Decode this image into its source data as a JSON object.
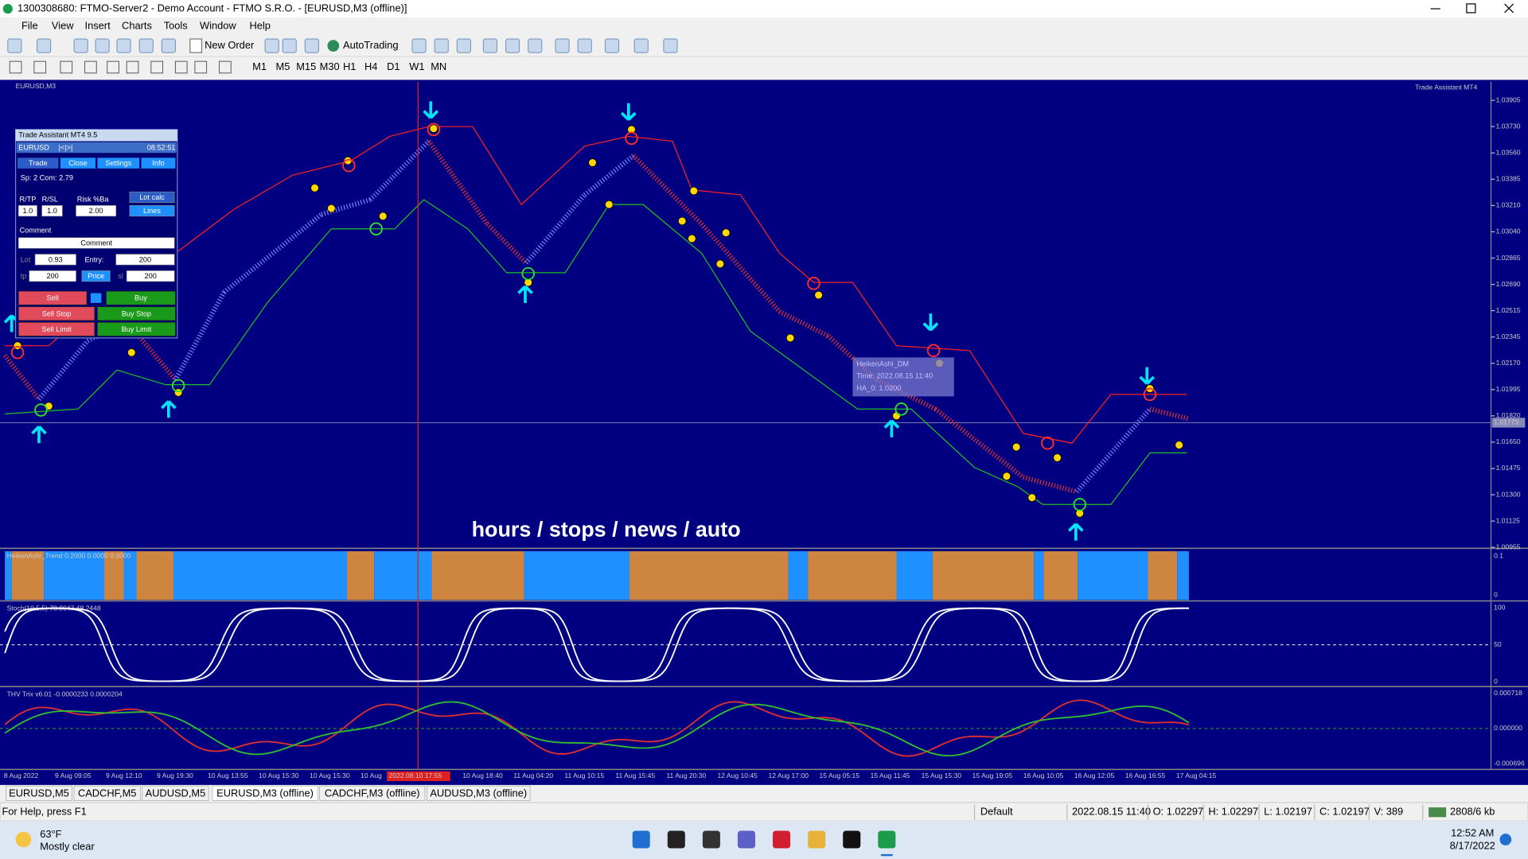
{
  "title_bar": {
    "title": "1300308680: FTMO-Server2 - Demo Account - FTMO S.R.O. - [EURUSD,M3 (offline)]"
  },
  "menu": [
    "File",
    "View",
    "Insert",
    "Charts",
    "Tools",
    "Window",
    "Help"
  ],
  "toolbar": {
    "new_order": "New Order",
    "auto_trading": "AutoTrading",
    "timeframes": [
      "M1",
      "M5",
      "M15",
      "M30",
      "H1",
      "H4",
      "D1",
      "W1",
      "MN"
    ]
  },
  "chart": {
    "symbol": "EURUSD,M3",
    "ea_label": "Trade Assistant MT4",
    "price_ticks": [
      "1.03905",
      "1.03730",
      "1.03560",
      "1.03385",
      "1.03210",
      "1.03040",
      "1.02865",
      "1.02690",
      "1.02515",
      "1.02345",
      "1.02170",
      "1.01995",
      "1.01820",
      "1.01650",
      "1.01475",
      "1.01300",
      "1.01125",
      "1.00955"
    ],
    "current_price": "1.01773",
    "time_labels": [
      "8 Aug 2022",
      "9 Aug 09:05",
      "9 Aug 12:10",
      "9 Aug 19:30",
      "10 Aug 13:55",
      "10 Aug 15:30",
      "10 Aug 15:30",
      "10 Aug",
      "10 Aug 18:40",
      "11 Aug 04:20",
      "11 Aug 10:15",
      "11 Aug 15:45",
      "11 Aug 20:30",
      "12 Aug 10:45",
      "12 Aug 17:00",
      "15 Aug 05:15",
      "15 Aug 11:45",
      "15 Aug 15:30",
      "15 Aug 19:05",
      "16 Aug 10:05",
      "16 Aug 12:05",
      "16 Aug 16:55",
      "17 Aug 04:15"
    ],
    "time_cursor": "2022.08.10 17:55",
    "overlay_text": "hours / stops / news / auto",
    "tooltip": [
      "HeikenAshi_DM",
      "Time: 2022.08.15 11:40",
      "HA_0: 1.0200"
    ],
    "indicators": [
      {
        "label": "HeikenAshi_Trend 0.2000 0.0000 0.0000",
        "ticks": [
          "0.1",
          "0"
        ]
      },
      {
        "label": "Stoch(10,5,5) 78.0047 48.2448",
        "ticks": [
          "100",
          "50",
          "0"
        ]
      },
      {
        "label": "THV Trix v6.01 -0.0000233 0.0000204",
        "ticks": [
          "0.000718",
          "0.000000",
          "-0.000696"
        ]
      }
    ]
  },
  "trade_panel": {
    "title": "Trade Assistant MT4 9.5",
    "symbol": "EURUSD",
    "nav": "|<|>|",
    "time": "08:52:51",
    "tabs": [
      "Trade",
      "Close",
      "Settings",
      "Info"
    ],
    "spread": "Sp: 2  Com: 2.79",
    "rtp_label": "R/TP",
    "rsl_label": "R/SL",
    "risk_label": "Risk %Ba",
    "rtp": "1.0",
    "rsl": "1.0",
    "risk": "2.00",
    "lot_calc": "Lot calc",
    "lines": "Lines",
    "comment_label": "Comment",
    "comment": "Comment",
    "lot_label": "Lot",
    "lot": "0.93",
    "entry_label": "Entry:",
    "entry": "200",
    "tp_label": "tp",
    "tp": "200",
    "price": "Price",
    "sl_label": "sl",
    "sl": "200",
    "sell": "Sell",
    "buy": "Buy",
    "sell_stop": "Sell Stop",
    "buy_stop": "Buy Stop",
    "sell_limit": "Sell Limit",
    "buy_limit": "Buy Limit"
  },
  "tabs": [
    "EURUSD,M5",
    "CADCHF,M5",
    "AUDUSD,M5",
    "EURUSD,M3 (offline)",
    "CADCHF,M3 (offline)",
    "AUDUSD,M3 (offline)"
  ],
  "status_bar": {
    "help": "For Help, press F1",
    "profile": "Default",
    "time": "2022.08.15 11:40",
    "open": "O: 1.02297",
    "high": "H: 1.02297",
    "low": "L: 1.02197",
    "close": "C: 1.02197",
    "volume": "V: 389",
    "traffic": "2808/6 kb"
  },
  "taskbar": {
    "temperature": "63°F",
    "weather": "Mostly clear",
    "clock": "12:52 AM",
    "date": "8/17/2022"
  }
}
